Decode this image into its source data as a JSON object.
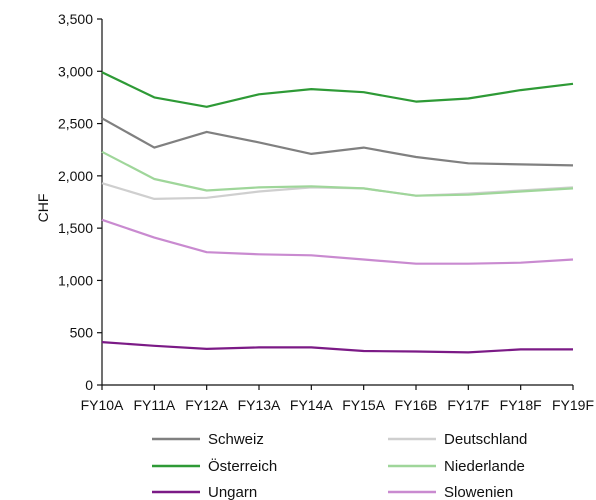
{
  "chart_data": {
    "type": "line",
    "title": "",
    "xlabel": "",
    "ylabel": "CHF",
    "x": [
      "FY10A",
      "FY11A",
      "FY12A",
      "FY13A",
      "FY14A",
      "FY15A",
      "FY16B",
      "FY17F",
      "FY18F",
      "FY19F"
    ],
    "ylim": [
      0,
      3500
    ],
    "yticks": [
      0,
      500,
      1000,
      1500,
      2000,
      2500,
      3000,
      3500
    ],
    "ytick_labels": [
      "0",
      "500",
      "1,000",
      "1,500",
      "2,000",
      "2,500",
      "3,000",
      "3,500"
    ],
    "grid": false,
    "legend_position": "bottom",
    "series": [
      {
        "name": "Schweiz",
        "color": "#808080",
        "values": [
          2550,
          2270,
          2420,
          2320,
          2210,
          2270,
          2180,
          2120,
          2110,
          2100
        ]
      },
      {
        "name": "Deutschland",
        "color": "#cfcfcf",
        "values": [
          1930,
          1780,
          1790,
          1850,
          1890,
          1880,
          1810,
          1830,
          1860,
          1890
        ]
      },
      {
        "name": "Österreich",
        "color": "#2e9a36",
        "values": [
          2990,
          2750,
          2660,
          2780,
          2830,
          2800,
          2710,
          2740,
          2820,
          2880
        ]
      },
      {
        "name": "Niederlande",
        "color": "#9fd69a",
        "values": [
          2230,
          1970,
          1860,
          1890,
          1900,
          1880,
          1810,
          1820,
          1850,
          1880
        ]
      },
      {
        "name": "Ungarn",
        "color": "#7b1a86",
        "values": [
          410,
          375,
          345,
          360,
          360,
          325,
          320,
          312,
          340,
          340
        ]
      },
      {
        "name": "Slowenien",
        "color": "#c98ad0",
        "values": [
          1580,
          1410,
          1270,
          1250,
          1240,
          1200,
          1160,
          1160,
          1170,
          1200
        ]
      }
    ]
  }
}
